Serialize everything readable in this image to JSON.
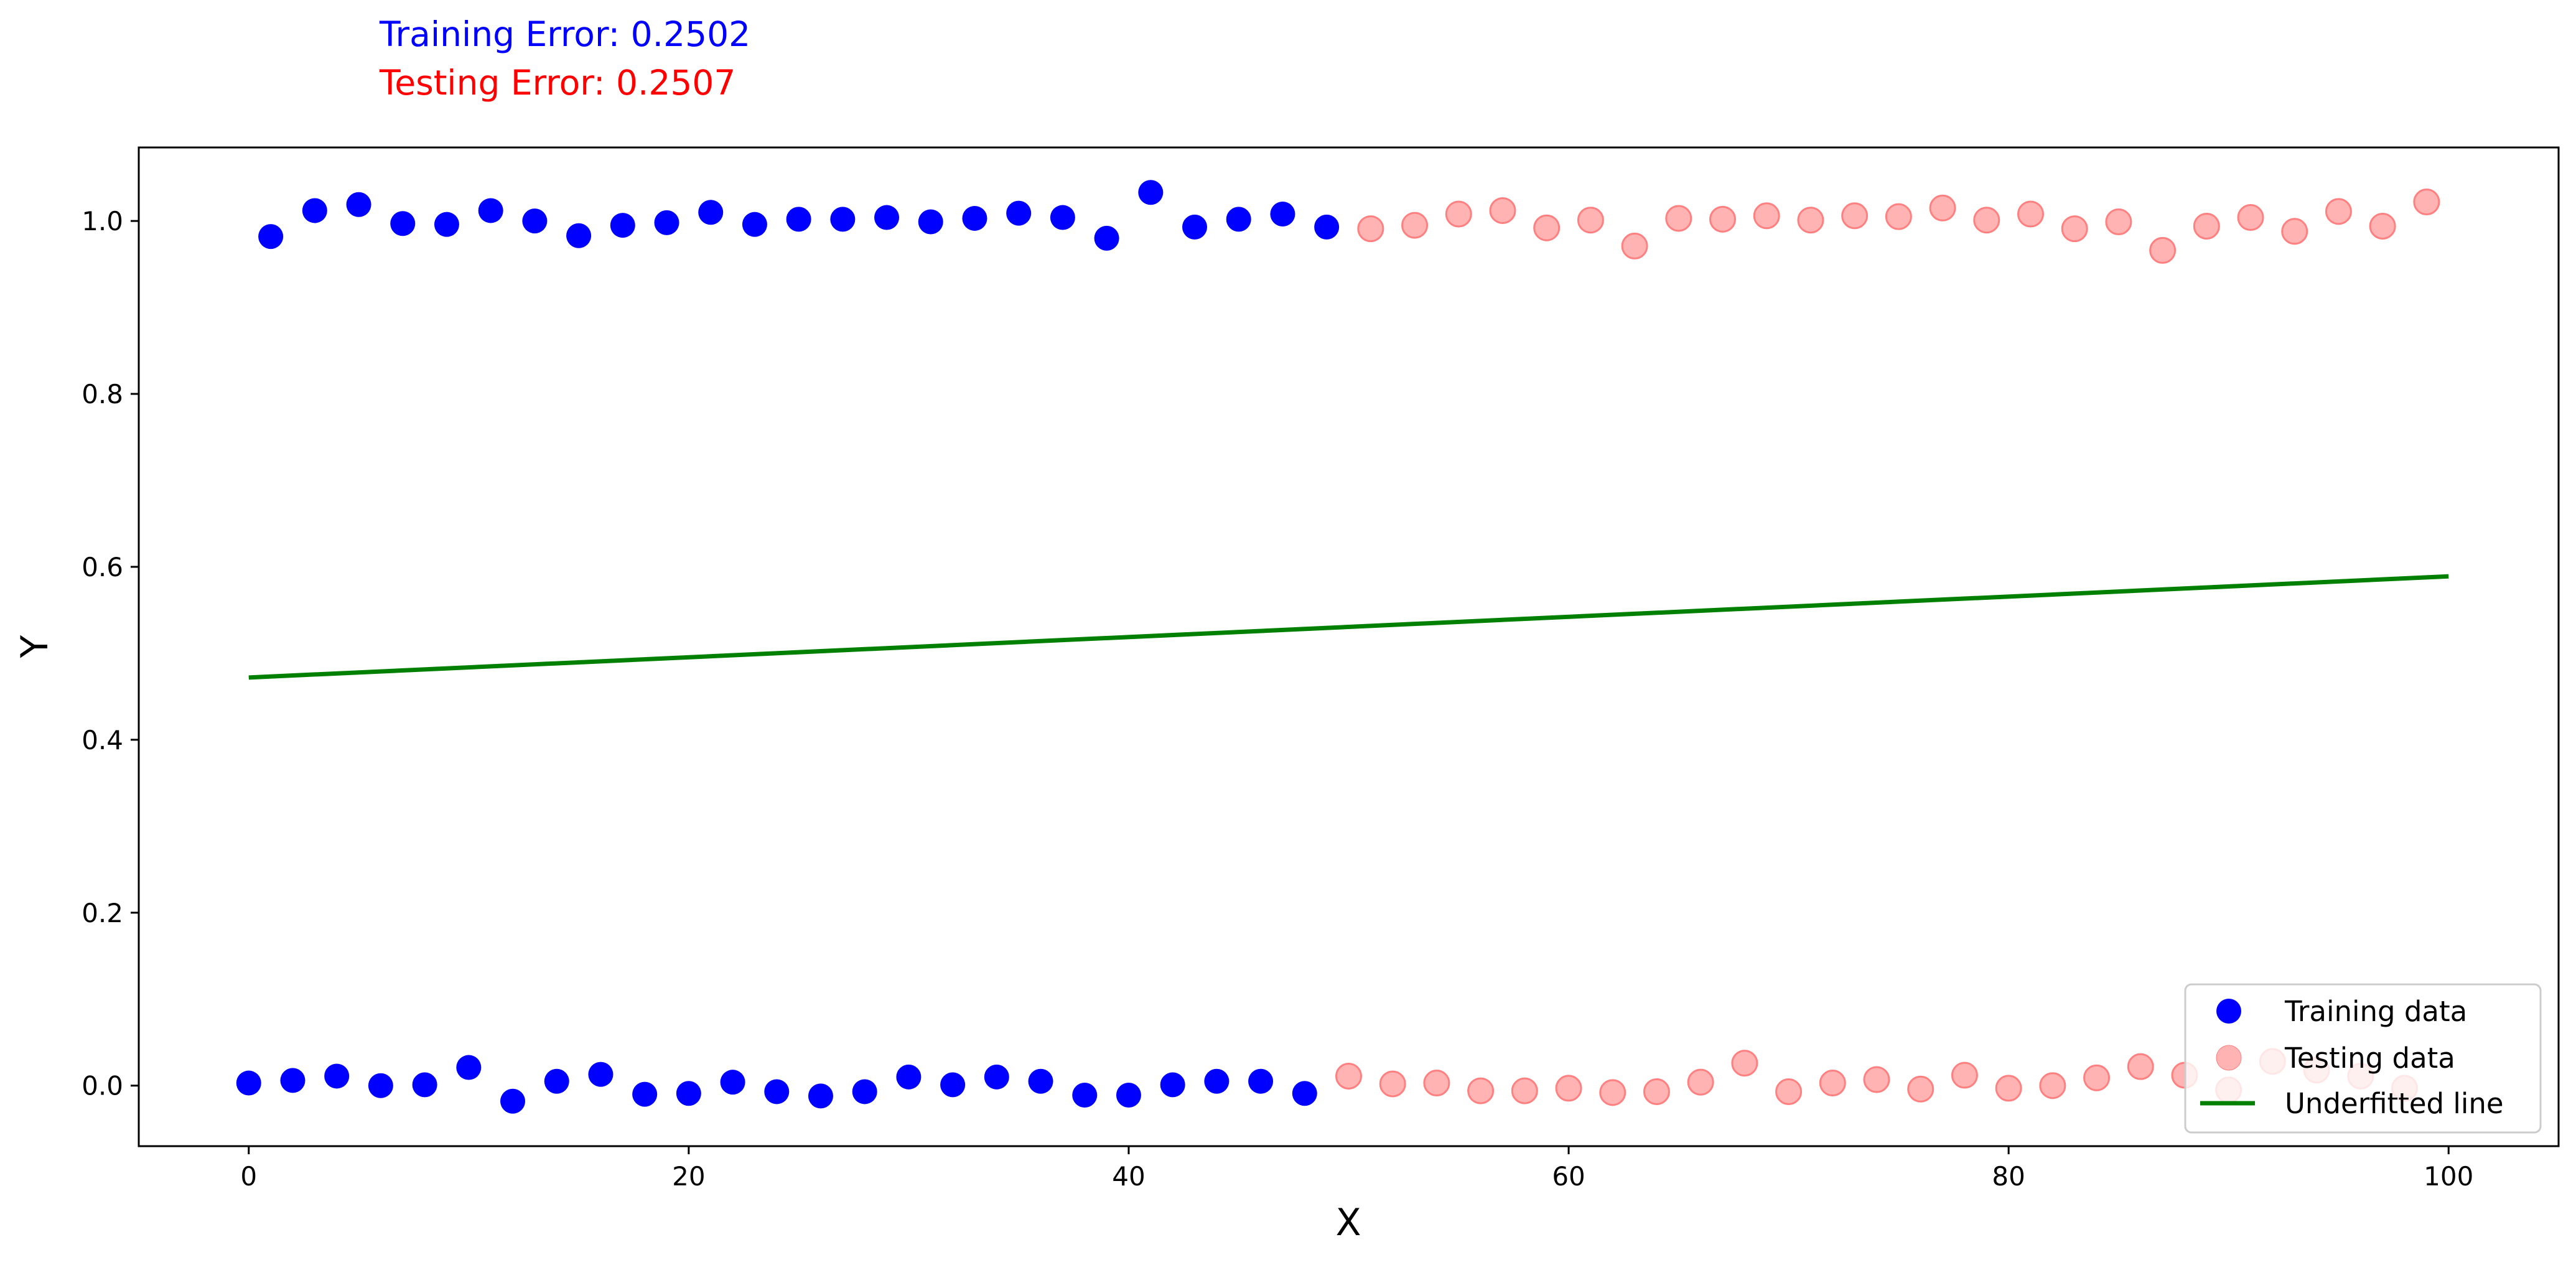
{
  "chart_data": {
    "type": "scatter",
    "annotations": [
      {
        "text": "Training Error: 0.2502",
        "color": "#0000ff"
      },
      {
        "text": "Testing Error: 0.2507",
        "color": "#ff0000"
      }
    ],
    "xlabel": "X",
    "ylabel": "Y",
    "xlim": [
      -5,
      105
    ],
    "ylim": [
      -0.07,
      1.085
    ],
    "xticks": [
      "0",
      "20",
      "40",
      "60",
      "80",
      "100"
    ],
    "yticks": [
      "0.0",
      "0.2",
      "0.4",
      "0.6",
      "0.8",
      "1.0"
    ],
    "grid": false,
    "legend_position": "lower-right",
    "series": [
      {
        "name": "Training data",
        "kind": "scatter",
        "color": "#0000ff",
        "x": [
          0,
          1,
          2,
          3,
          4,
          5,
          6,
          7,
          8,
          9,
          10,
          11,
          12,
          13,
          14,
          15,
          16,
          17,
          18,
          19,
          20,
          21,
          22,
          23,
          24,
          25,
          26,
          27,
          28,
          29,
          30,
          31,
          32,
          33,
          34,
          35,
          36,
          37,
          38,
          39,
          40,
          41,
          42,
          43,
          44,
          45,
          46,
          47,
          48,
          49
        ],
        "y": [
          0.003,
          0.982,
          0.006,
          1.012,
          0.011,
          1.019,
          0.0,
          0.997,
          0.001,
          0.996,
          0.021,
          1.012,
          -0.018,
          1.0,
          0.005,
          0.983,
          0.013,
          0.995,
          -0.01,
          0.998,
          -0.009,
          1.01,
          0.004,
          0.996,
          -0.007,
          1.002,
          -0.012,
          1.002,
          -0.007,
          1.004,
          0.01,
          0.999,
          0.001,
          1.003,
          0.01,
          1.009,
          0.005,
          1.004,
          -0.011,
          0.98,
          -0.011,
          1.033,
          0.001,
          0.993,
          0.005,
          1.002,
          0.005,
          1.008,
          -0.009,
          0.993
        ]
      },
      {
        "name": "Testing data",
        "kind": "scatter",
        "color": "#ff8080",
        "x": [
          50,
          51,
          52,
          53,
          54,
          55,
          56,
          57,
          58,
          59,
          60,
          61,
          62,
          63,
          64,
          65,
          66,
          67,
          68,
          69,
          70,
          71,
          72,
          73,
          74,
          75,
          76,
          77,
          78,
          79,
          80,
          81,
          82,
          83,
          84,
          85,
          86,
          87,
          88,
          89,
          90,
          91,
          92,
          93,
          94,
          95,
          96,
          97,
          98,
          99
        ],
        "y": [
          0.011,
          0.991,
          0.002,
          0.995,
          0.003,
          1.008,
          -0.006,
          1.012,
          -0.006,
          0.992,
          -0.003,
          1.001,
          -0.008,
          0.971,
          -0.007,
          1.003,
          0.004,
          1.002,
          0.026,
          1.006,
          -0.007,
          1.001,
          0.003,
          1.006,
          0.007,
          1.005,
          -0.004,
          1.015,
          0.012,
          1.001,
          -0.003,
          1.008,
          0.0,
          0.991,
          0.009,
          0.999,
          0.022,
          0.966,
          0.012,
          0.994,
          -0.005,
          1.004,
          0.028,
          0.988,
          0.018,
          1.011,
          0.011,
          0.994,
          -0.003,
          1.022
        ]
      },
      {
        "name": "Underfitted line",
        "kind": "line",
        "color": "#008000",
        "x": [
          0,
          100
        ],
        "y": [
          0.472,
          0.589
        ]
      }
    ]
  }
}
